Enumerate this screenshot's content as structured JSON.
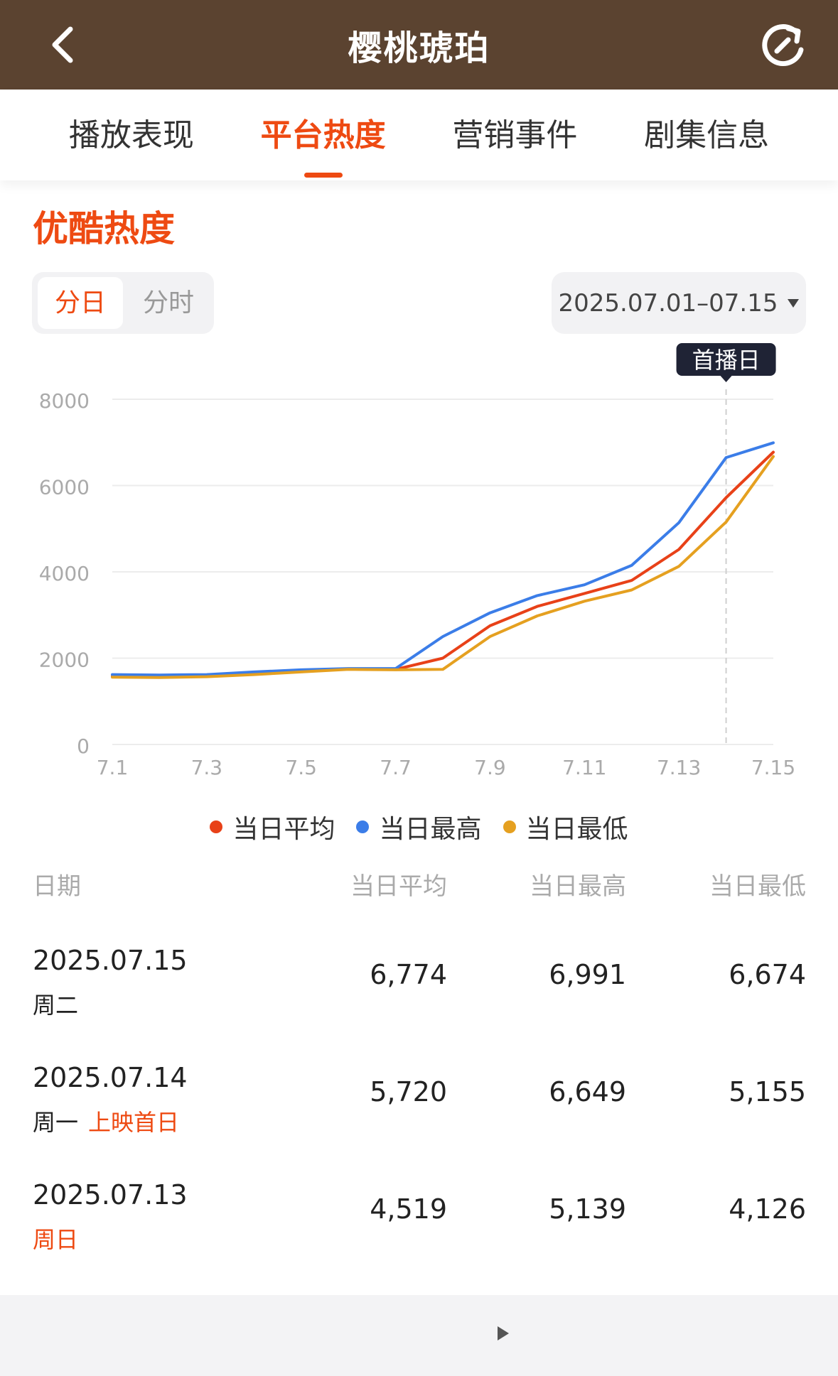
{
  "header": {
    "title": "樱桃琥珀"
  },
  "tabs": [
    {
      "label": "播放表现",
      "active": false
    },
    {
      "label": "平台热度",
      "active": true
    },
    {
      "label": "营销事件",
      "active": false
    },
    {
      "label": "剧集信息",
      "active": false
    }
  ],
  "section": {
    "title": "优酷热度",
    "segments": [
      "分日",
      "分时"
    ],
    "date_range": "2025.07.01–07.15"
  },
  "chart_data": {
    "type": "line",
    "x": [
      "7.1",
      "7.2",
      "7.3",
      "7.4",
      "7.5",
      "7.6",
      "7.7",
      "7.8",
      "7.9",
      "7.10",
      "7.11",
      "7.12",
      "7.13",
      "7.14",
      "7.15"
    ],
    "xticks": [
      "7.1",
      "7.3",
      "7.5",
      "7.7",
      "7.9",
      "7.11",
      "7.13",
      "7.15"
    ],
    "yticks": [
      "0",
      "2000",
      "4000",
      "6000",
      "8000"
    ],
    "ylim": [
      0,
      8000
    ],
    "annotation": {
      "x": "7.14",
      "label": "首播日"
    },
    "series": [
      {
        "name": "当日平均",
        "color": "#e84118",
        "values": [
          1580,
          1570,
          1590,
          1640,
          1700,
          1750,
          1740,
          2000,
          2750,
          3200,
          3500,
          3800,
          4519,
          5720,
          6774
        ]
      },
      {
        "name": "当日最高",
        "color": "#3b7de8",
        "values": [
          1620,
          1610,
          1620,
          1680,
          1730,
          1760,
          1760,
          2500,
          3050,
          3450,
          3700,
          4150,
          5139,
          6649,
          6991
        ]
      },
      {
        "name": "当日最低",
        "color": "#e5a020",
        "values": [
          1560,
          1550,
          1570,
          1620,
          1680,
          1740,
          1730,
          1740,
          2500,
          2980,
          3320,
          3580,
          4126,
          5155,
          6674
        ]
      }
    ]
  },
  "legend": [
    {
      "label": "当日平均",
      "color": "#e84118"
    },
    {
      "label": "当日最高",
      "color": "#3b7de8"
    },
    {
      "label": "当日最低",
      "color": "#e5a020"
    }
  ],
  "table": {
    "headers": [
      "日期",
      "当日平均",
      "当日最高",
      "当日最低"
    ],
    "rows": [
      {
        "date": "2025.07.15",
        "weekday": "周二",
        "tag": "",
        "avg": "6,774",
        "max": "6,991",
        "min": "6,674"
      },
      {
        "date": "2025.07.14",
        "weekday": "周一",
        "tag": "上映首日",
        "avg": "5,720",
        "max": "6,649",
        "min": "5,155"
      },
      {
        "date": "2025.07.13",
        "weekday": "周日",
        "tag": "",
        "avg": "4,519",
        "max": "5,139",
        "min": "4,126"
      }
    ]
  }
}
